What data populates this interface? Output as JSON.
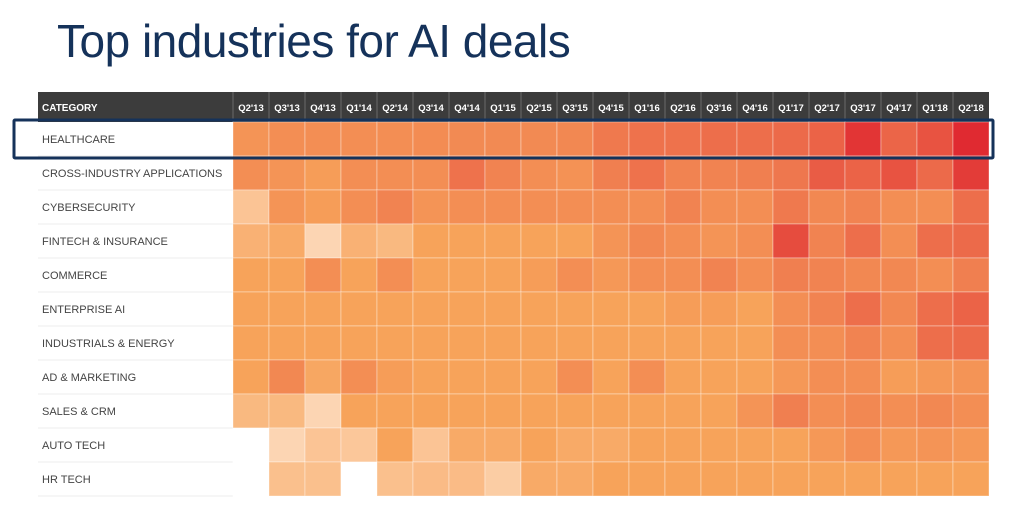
{
  "title": "Top industries for AI deals",
  "chart_data": {
    "type": "heatmap",
    "title": "Top industries for AI deals",
    "header_label": "CATEGORY",
    "columns": [
      "Q2'13",
      "Q3'13",
      "Q4'13",
      "Q1'14",
      "Q2'14",
      "Q3'14",
      "Q4'14",
      "Q1'15",
      "Q2'15",
      "Q3'15",
      "Q4'15",
      "Q1'16",
      "Q2'16",
      "Q3'16",
      "Q4'16",
      "Q1'17",
      "Q2'17",
      "Q3'17",
      "Q4'17",
      "Q1'18",
      "Q2'18"
    ],
    "rows": [
      "HEALTHCARE",
      "CROSS-INDUSTRY APPLICATIONS",
      "CYBERSECURITY",
      "FINTECH & INSURANCE",
      "COMMERCE",
      "ENTERPRISE AI",
      "INDUSTRIALS & ENERGY",
      "AD & MARKETING",
      "SALES & CRM",
      "AUTO TECH",
      "HR TECH"
    ],
    "intensity": [
      [
        0.52,
        0.55,
        0.55,
        0.55,
        0.55,
        0.56,
        0.57,
        0.57,
        0.57,
        0.58,
        0.65,
        0.68,
        0.68,
        0.7,
        0.7,
        0.72,
        0.75,
        0.95,
        0.74,
        0.82,
        1.0
      ],
      [
        0.55,
        0.52,
        0.48,
        0.55,
        0.55,
        0.55,
        0.68,
        0.6,
        0.55,
        0.53,
        0.62,
        0.68,
        0.6,
        0.6,
        0.62,
        0.66,
        0.78,
        0.75,
        0.82,
        0.72,
        0.92
      ],
      [
        0.22,
        0.52,
        0.48,
        0.55,
        0.6,
        0.52,
        0.55,
        0.55,
        0.55,
        0.55,
        0.55,
        0.55,
        0.6,
        0.55,
        0.55,
        0.65,
        0.58,
        0.6,
        0.55,
        0.55,
        0.7
      ],
      [
        0.35,
        0.4,
        0.15,
        0.35,
        0.3,
        0.45,
        0.45,
        0.45,
        0.45,
        0.45,
        0.52,
        0.58,
        0.55,
        0.52,
        0.55,
        0.85,
        0.6,
        0.7,
        0.55,
        0.7,
        0.72
      ],
      [
        0.45,
        0.45,
        0.55,
        0.45,
        0.55,
        0.45,
        0.45,
        0.45,
        0.48,
        0.55,
        0.5,
        0.55,
        0.55,
        0.6,
        0.55,
        0.62,
        0.6,
        0.58,
        0.58,
        0.55,
        0.62
      ],
      [
        0.45,
        0.45,
        0.45,
        0.45,
        0.45,
        0.45,
        0.45,
        0.45,
        0.45,
        0.45,
        0.45,
        0.45,
        0.48,
        0.48,
        0.45,
        0.55,
        0.6,
        0.7,
        0.58,
        0.7,
        0.75
      ],
      [
        0.45,
        0.45,
        0.45,
        0.45,
        0.45,
        0.45,
        0.45,
        0.45,
        0.45,
        0.45,
        0.45,
        0.45,
        0.45,
        0.45,
        0.45,
        0.55,
        0.55,
        0.6,
        0.55,
        0.7,
        0.72
      ],
      [
        0.45,
        0.58,
        0.42,
        0.55,
        0.48,
        0.45,
        0.45,
        0.45,
        0.45,
        0.55,
        0.45,
        0.55,
        0.45,
        0.45,
        0.45,
        0.5,
        0.55,
        0.55,
        0.48,
        0.5,
        0.52
      ],
      [
        0.3,
        0.3,
        0.15,
        0.45,
        0.45,
        0.45,
        0.45,
        0.45,
        0.45,
        0.45,
        0.45,
        0.45,
        0.45,
        0.45,
        0.52,
        0.62,
        0.55,
        0.58,
        0.55,
        0.58,
        0.55
      ],
      [
        0.0,
        0.15,
        0.22,
        0.2,
        0.45,
        0.22,
        0.4,
        0.4,
        0.45,
        0.4,
        0.4,
        0.45,
        0.45,
        0.45,
        0.45,
        0.45,
        0.5,
        0.55,
        0.5,
        0.52,
        0.5
      ],
      [
        0.0,
        0.25,
        0.25,
        0.0,
        0.25,
        0.28,
        0.28,
        0.18,
        0.4,
        0.4,
        0.45,
        0.45,
        0.45,
        0.45,
        0.45,
        0.45,
        0.45,
        0.45,
        0.45,
        0.45,
        0.45
      ]
    ],
    "highlighted_row": "HEALTHCARE",
    "colors": {
      "low": "#ffffff",
      "light": "#fbc79a",
      "mid": "#f7a35a",
      "high": "#ec6a4a",
      "max": "#e02a31",
      "header_bg": "#3c3c3c",
      "header_text": "#ffffff",
      "label_text": "#444444",
      "highlight_border": "#15325a",
      "title": "#15325a"
    }
  }
}
